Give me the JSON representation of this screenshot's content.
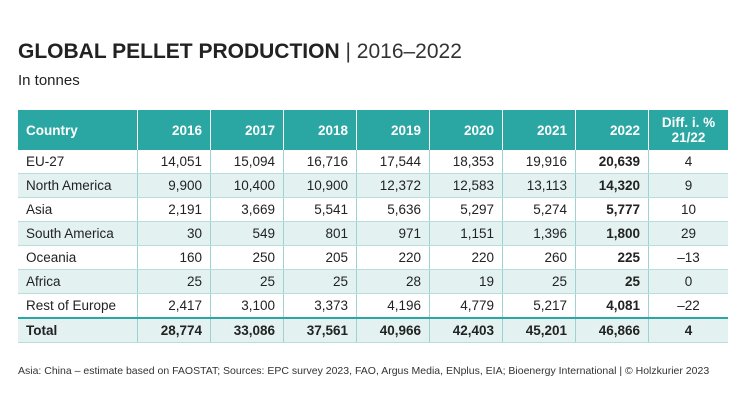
{
  "header": {
    "title": "GLOBAL PELLET PRODUCTION",
    "separator": "|",
    "period": "2016–2022",
    "subtitle": "In tonnes"
  },
  "table": {
    "columns": [
      "Country",
      "2016",
      "2017",
      "2018",
      "2019",
      "2020",
      "2021",
      "2022",
      "Diff. i. % 21/22"
    ],
    "rows": [
      [
        "EU-27",
        "14,051",
        "15,094",
        "16,716",
        "17,544",
        "18,353",
        "19,916",
        "20,639",
        "4"
      ],
      [
        "North America",
        "9,900",
        "10,400",
        "10,900",
        "12,372",
        "12,583",
        "13,113",
        "14,320",
        "9"
      ],
      [
        "Asia",
        "2,191",
        "3,669",
        "5,541",
        "5,636",
        "5,297",
        "5,274",
        "5,777",
        "10"
      ],
      [
        "South America",
        "30",
        "549",
        "801",
        "971",
        "1,151",
        "1,396",
        "1,800",
        "29"
      ],
      [
        "Oceania",
        "160",
        "250",
        "205",
        "220",
        "220",
        "260",
        "225",
        "–13"
      ],
      [
        "Africa",
        "25",
        "25",
        "25",
        "28",
        "19",
        "25",
        "25",
        "0"
      ],
      [
        "Rest of Europe",
        "2,417",
        "3,100",
        "3,373",
        "4,196",
        "4,779",
        "5,217",
        "4,081",
        "–22"
      ],
      [
        "Total",
        "28,774",
        "33,086",
        "37,561",
        "40,966",
        "42,403",
        "45,201",
        "46,866",
        "4"
      ]
    ]
  },
  "footer": "Asia: China – estimate based on FAOSTAT; Sources: EPC survey 2023, FAO, Argus Media, ENplus, EIA; Bioenergy International | © Holzkurier 2023"
}
